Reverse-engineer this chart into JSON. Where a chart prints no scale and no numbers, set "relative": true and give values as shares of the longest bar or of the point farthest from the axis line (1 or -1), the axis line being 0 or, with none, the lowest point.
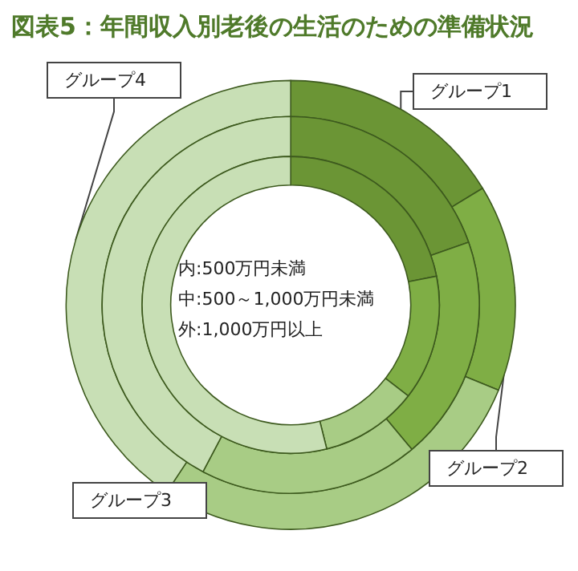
{
  "chart_data": {
    "type": "donut",
    "title": "図表5：年間収入別老後の生活のための準備状況",
    "relative": true,
    "categories": [
      "グループ1",
      "グループ2",
      "グループ3",
      "グループ4"
    ],
    "colors": [
      "#6b9535",
      "#7fae45",
      "#a8cc85",
      "#c8dfb5"
    ],
    "series": [
      {
        "values": [
          16.3,
          14.9,
          28.1,
          40.7
        ]
      },
      {
        "values": [
          19.6,
          19.3,
          18.8,
          42.3
        ]
      },
      {
        "values": [
          21.9,
          13.6,
          10.6,
          53.9
        ]
      }
    ],
    "annotations": [
      "内:500万円未満",
      "中:500～1,000万円未満",
      "外:1,000万円以上"
    ],
    "legend": false
  }
}
